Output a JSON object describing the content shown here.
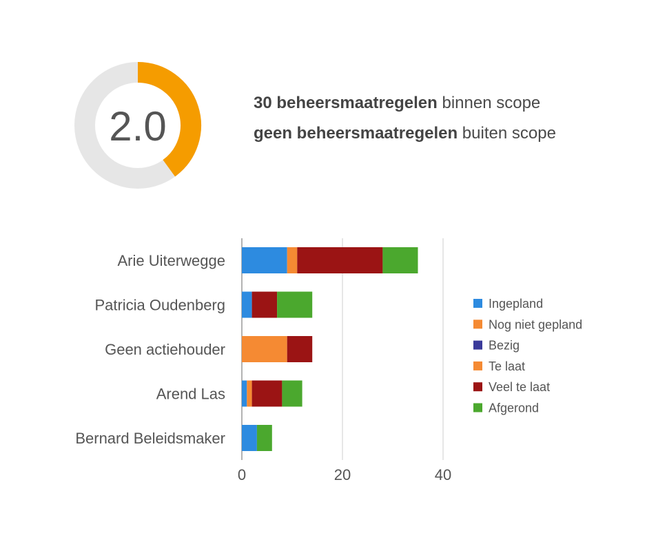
{
  "score": {
    "value": "2.0",
    "fill_fraction": 0.4,
    "fill_color": "#f59c00",
    "track_color": "#e6e6e6",
    "text_color": "#555555"
  },
  "summary": {
    "line1_bold": "30 beheersmaatregelen",
    "line1_rest": " binnen scope",
    "line2_bold": "geen beheersmaatregelen",
    "line2_rest": " buiten scope"
  },
  "chart_data": {
    "type": "bar",
    "orientation": "horizontal",
    "stacked": true,
    "categories": [
      "Arie Uiterwegge",
      "Patricia Oudenberg",
      "Geen actiehouder",
      "Arend Las",
      "Bernard Beleidsmaker"
    ],
    "series": [
      {
        "name": "Ingepland",
        "color": "#2d8be0",
        "values": [
          9,
          2,
          0,
          1,
          3
        ]
      },
      {
        "name": "Nog niet gepland",
        "color": "#f58a33",
        "values": [
          0,
          0,
          9,
          0,
          0
        ]
      },
      {
        "name": "Bezig",
        "color": "#3a3a9a",
        "values": [
          0,
          0,
          0,
          0,
          0
        ]
      },
      {
        "name": "Te laat",
        "color": "#f58a33",
        "values": [
          2,
          0,
          0,
          1,
          0
        ]
      },
      {
        "name": "Veel te laat",
        "color": "#9b1414",
        "values": [
          17,
          5,
          5,
          6,
          0
        ]
      },
      {
        "name": "Afgerond",
        "color": "#4ba82e",
        "values": [
          7,
          7,
          0,
          4,
          3
        ]
      }
    ],
    "xticks": [
      "0",
      "20",
      "40"
    ],
    "xlim": [
      0,
      40
    ],
    "grid": true,
    "legend_position": "right"
  }
}
